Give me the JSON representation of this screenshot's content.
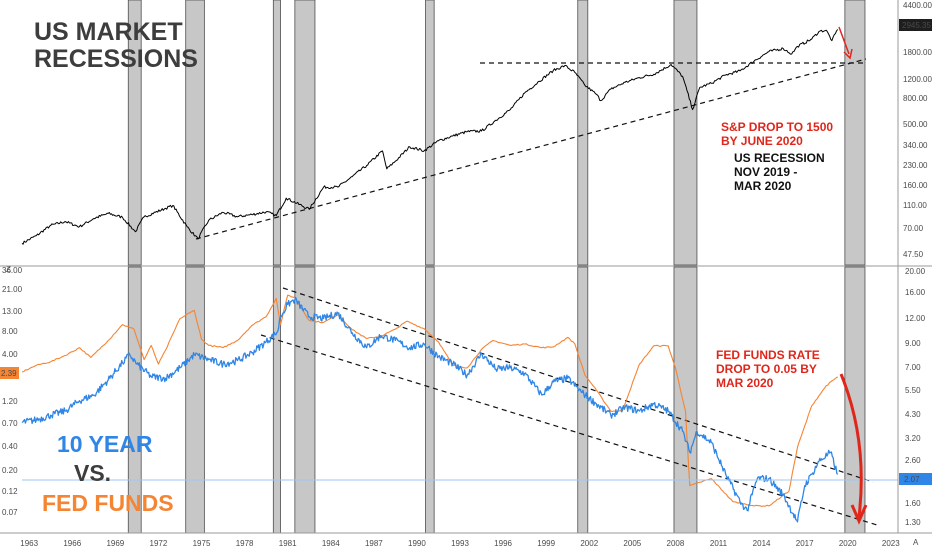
{
  "colors": {
    "spx": "#000000",
    "ten_year": "#2f86e6",
    "fed_funds": "#f58433",
    "annotation_red": "#e0261b",
    "title_gray": "#3d3d3d",
    "recession_fill": "#c7c7c7",
    "price_tag": "#1e1e1e",
    "price_tag_blue": "#2f86e6"
  },
  "icons": {
    "top_left_marker": "Z",
    "bottom_right_marker": "A"
  },
  "chart_data": [
    {
      "id": "spx",
      "type": "line",
      "scale": "log",
      "title": "US MARKET RECESSIONS",
      "annotations": [
        "S&P DROP TO 1500 BY JUNE 2020",
        "US RECESSION NOV 2019 - MAR 2020"
      ],
      "y_ticks": [
        "4400.00",
        "2945.35",
        "1800.00",
        "1200.00",
        "800.00",
        "500.00",
        "340.00",
        "230.00",
        "160.00",
        "110.00",
        "70.00",
        "47.50"
      ],
      "last_value_label": "2945.35",
      "ylim": [
        42,
        4600
      ],
      "series": [
        {
          "values": [
            [
              1962.5,
              59
            ],
            [
              1963.5,
              68
            ],
            [
              1964.5,
              82
            ],
            [
              1965.5,
              88
            ],
            [
              1966.5,
              80
            ],
            [
              1967.5,
              93
            ],
            [
              1968.5,
              102
            ],
            [
              1969.5,
              95
            ],
            [
              1970.4,
              73
            ],
            [
              1971.0,
              96
            ],
            [
              1972.5,
              112
            ],
            [
              1973.0,
              118
            ],
            [
              1974.0,
              80
            ],
            [
              1974.75,
              64
            ],
            [
              1975.5,
              90
            ],
            [
              1976.5,
              104
            ],
            [
              1977.5,
              96
            ],
            [
              1978.5,
              100
            ],
            [
              1979.5,
              105
            ],
            [
              1980.2,
              98
            ],
            [
              1980.9,
              135
            ],
            [
              1982.5,
              110
            ],
            [
              1983.5,
              165
            ],
            [
              1984.5,
              165
            ],
            [
              1985.5,
              200
            ],
            [
              1986.5,
              245
            ],
            [
              1987.6,
              320
            ],
            [
              1987.9,
              230
            ],
            [
              1988.5,
              265
            ],
            [
              1989.5,
              345
            ],
            [
              1990.5,
              320
            ],
            [
              1991.5,
              385
            ],
            [
              1992.5,
              420
            ],
            [
              1993.5,
              455
            ],
            [
              1994.5,
              460
            ],
            [
              1995.5,
              560
            ],
            [
              1996.5,
              680
            ],
            [
              1997.5,
              920
            ],
            [
              1998.5,
              1140
            ],
            [
              1999.5,
              1390
            ],
            [
              2000.3,
              1520
            ],
            [
              2001.0,
              1340
            ],
            [
              2001.7,
              1060
            ],
            [
              2002.5,
              900
            ],
            [
              2002.8,
              800
            ],
            [
              2003.5,
              990
            ],
            [
              2004.5,
              1120
            ],
            [
              2005.5,
              1220
            ],
            [
              2006.5,
              1300
            ],
            [
              2007.7,
              1550
            ],
            [
              2008.5,
              1250
            ],
            [
              2009.2,
              680
            ],
            [
              2009.7,
              1020
            ],
            [
              2010.5,
              1100
            ],
            [
              2011.5,
              1280
            ],
            [
              2012.5,
              1380
            ],
            [
              2013.5,
              1660
            ],
            [
              2014.5,
              1960
            ],
            [
              2015.5,
              2080
            ],
            [
              2016.1,
              1880
            ],
            [
              2016.5,
              2160
            ],
            [
              2017.5,
              2470
            ],
            [
              2018.0,
              2840
            ],
            [
              2018.5,
              2900
            ],
            [
              2018.9,
              2400
            ],
            [
              2019.3,
              2945
            ]
          ]
        }
      ]
    },
    {
      "id": "rates",
      "type": "line",
      "scale": "log",
      "x_ticks": [
        "1963",
        "1966",
        "1969",
        "1972",
        "1975",
        "1978",
        "1981",
        "1984",
        "1987",
        "1990",
        "1993",
        "1996",
        "1999",
        "2002",
        "2005",
        "2008",
        "2011",
        "2014",
        "2017",
        "2020",
        "2023"
      ],
      "y_ticks_left": [
        "36.00",
        "21.00",
        "13.00",
        "8.00",
        "4.00",
        "2.39",
        "1.20",
        "0.70",
        "0.40",
        "0.20",
        "0.12",
        "0.07"
      ],
      "y_ticks_right": [
        "20.00",
        "16.00",
        "12.00",
        "9.00",
        "7.00",
        "5.50",
        "4.30",
        "3.20",
        "2.60",
        "2.07",
        "1.60",
        "1.30"
      ],
      "left_value_label": "2.39",
      "right_value_label": "2.07",
      "annotations": [
        "FED FUNDS RATE DROP TO 0.05 BY MAR 2020"
      ],
      "legend": [
        "10 YEAR",
        "VS.",
        "FED FUNDS"
      ],
      "series": [
        {
          "name": "FED FUNDS",
          "values": [
            [
              1962.5,
              2.7
            ],
            [
              1963.5,
              3.2
            ],
            [
              1964.5,
              3.5
            ],
            [
              1965.5,
              4.1
            ],
            [
              1966.5,
              5.0
            ],
            [
              1967.3,
              3.9
            ],
            [
              1968.5,
              6.0
            ],
            [
              1969.5,
              9.0
            ],
            [
              1970.3,
              8.0
            ],
            [
              1971.0,
              3.7
            ],
            [
              1971.5,
              5.3
            ],
            [
              1972.0,
              3.3
            ],
            [
              1972.5,
              4.7
            ],
            [
              1973.5,
              10.5
            ],
            [
              1974.5,
              12.9
            ],
            [
              1975.0,
              6.2
            ],
            [
              1975.5,
              5.3
            ],
            [
              1976.5,
              5.0
            ],
            [
              1977.5,
              6.0
            ],
            [
              1978.5,
              8.8
            ],
            [
              1979.5,
              11.0
            ],
            [
              1980.2,
              17.5
            ],
            [
              1980.5,
              9.0
            ],
            [
              1981.0,
              19.0
            ],
            [
              1981.5,
              17.8
            ],
            [
              1982.5,
              10.0
            ],
            [
              1983.5,
              9.5
            ],
            [
              1984.5,
              11.6
            ],
            [
              1985.5,
              7.9
            ],
            [
              1986.5,
              6.3
            ],
            [
              1987.5,
              6.7
            ],
            [
              1988.5,
              8.0
            ],
            [
              1989.3,
              9.8
            ],
            [
              1990.5,
              8.1
            ],
            [
              1991.5,
              5.8
            ],
            [
              1992.5,
              3.2
            ],
            [
              1993.5,
              3.0
            ],
            [
              1994.5,
              4.8
            ],
            [
              1995.3,
              6.0
            ],
            [
              1996.5,
              5.3
            ],
            [
              1997.5,
              5.5
            ],
            [
              1998.7,
              5.0
            ],
            [
              1999.5,
              5.1
            ],
            [
              2000.5,
              6.5
            ],
            [
              2001.0,
              5.5
            ],
            [
              2001.7,
              2.5
            ],
            [
              2002.5,
              1.7
            ],
            [
              2003.5,
              1.0
            ],
            [
              2004.3,
              1.0
            ],
            [
              2005.5,
              3.3
            ],
            [
              2006.5,
              5.25
            ],
            [
              2007.5,
              5.25
            ],
            [
              2008.0,
              3.0
            ],
            [
              2008.7,
              1.0
            ],
            [
              2009.0,
              0.15
            ],
            [
              2010.5,
              0.18
            ],
            [
              2012.0,
              0.1
            ],
            [
              2013.5,
              0.09
            ],
            [
              2014.5,
              0.09
            ],
            [
              2015.9,
              0.13
            ],
            [
              2016.5,
              0.4
            ],
            [
              2017.5,
              1.15
            ],
            [
              2018.5,
              1.9
            ],
            [
              2019.3,
              2.39
            ]
          ]
        },
        {
          "name": "10 YEAR",
          "values": [
            [
              1962.5,
              0.75
            ],
            [
              1963.5,
              0.8
            ],
            [
              1964.5,
              0.9
            ],
            [
              1965.5,
              1.0
            ],
            [
              1966.5,
              1.3
            ],
            [
              1967.5,
              1.5
            ],
            [
              1968.5,
              2.2
            ],
            [
              1969.5,
              3.4
            ],
            [
              1970.0,
              4.2
            ],
            [
              1970.5,
              3.3
            ],
            [
              1971.5,
              2.4
            ],
            [
              1972.5,
              2.3
            ],
            [
              1973.5,
              3.0
            ],
            [
              1974.5,
              4.2
            ],
            [
              1975.5,
              3.7
            ],
            [
              1976.5,
              3.3
            ],
            [
              1977.5,
              3.6
            ],
            [
              1978.5,
              4.4
            ],
            [
              1979.5,
              5.8
            ],
            [
              1980.3,
              7.5
            ],
            [
              1980.5,
              11.0
            ],
            [
              1981.0,
              15.0
            ],
            [
              1981.5,
              17.0
            ],
            [
              1982.5,
              11.0
            ],
            [
              1983.5,
              10.5
            ],
            [
              1984.5,
              12.0
            ],
            [
              1985.5,
              7.3
            ],
            [
              1986.5,
              5.0
            ],
            [
              1987.5,
              6.8
            ],
            [
              1988.5,
              6.0
            ],
            [
              1989.5,
              5.0
            ],
            [
              1990.5,
              5.5
            ],
            [
              1991.5,
              4.0
            ],
            [
              1992.5,
              3.3
            ],
            [
              1993.5,
              2.5
            ],
            [
              1994.5,
              4.3
            ],
            [
              1995.5,
              2.9
            ],
            [
              1996.5,
              3.0
            ],
            [
              1997.5,
              2.6
            ],
            [
              1998.7,
              1.5
            ],
            [
              1999.5,
              2.1
            ],
            [
              2000.5,
              2.3
            ],
            [
              2001.5,
              1.6
            ],
            [
              2002.5,
              1.2
            ],
            [
              2003.5,
              0.9
            ],
            [
              2004.5,
              1.1
            ],
            [
              2005.5,
              1.0
            ],
            [
              2006.5,
              1.2
            ],
            [
              2007.5,
              1.0
            ],
            [
              2008.5,
              0.6
            ],
            [
              2009.0,
              0.35
            ],
            [
              2009.5,
              0.6
            ],
            [
              2010.5,
              0.45
            ],
            [
              2011.5,
              0.2
            ],
            [
              2012.5,
              0.1
            ],
            [
              2013.0,
              0.08
            ],
            [
              2013.7,
              0.18
            ],
            [
              2014.5,
              0.18
            ],
            [
              2015.5,
              0.12
            ],
            [
              2016.5,
              0.06
            ],
            [
              2017.0,
              0.15
            ],
            [
              2017.5,
              0.2
            ],
            [
              2018.0,
              0.28
            ],
            [
              2018.8,
              0.35
            ],
            [
              2019.3,
              0.2
            ]
          ]
        }
      ]
    }
  ],
  "recessions": [
    [
      1969.9,
      1970.8
    ],
    [
      1973.9,
      1975.2
    ],
    [
      1980.0,
      1980.5
    ],
    [
      1981.5,
      1982.9
    ],
    [
      1990.6,
      1991.2
    ],
    [
      2001.2,
      2001.9
    ],
    [
      2007.9,
      2009.5
    ],
    [
      2019.8,
      2021.2
    ]
  ]
}
